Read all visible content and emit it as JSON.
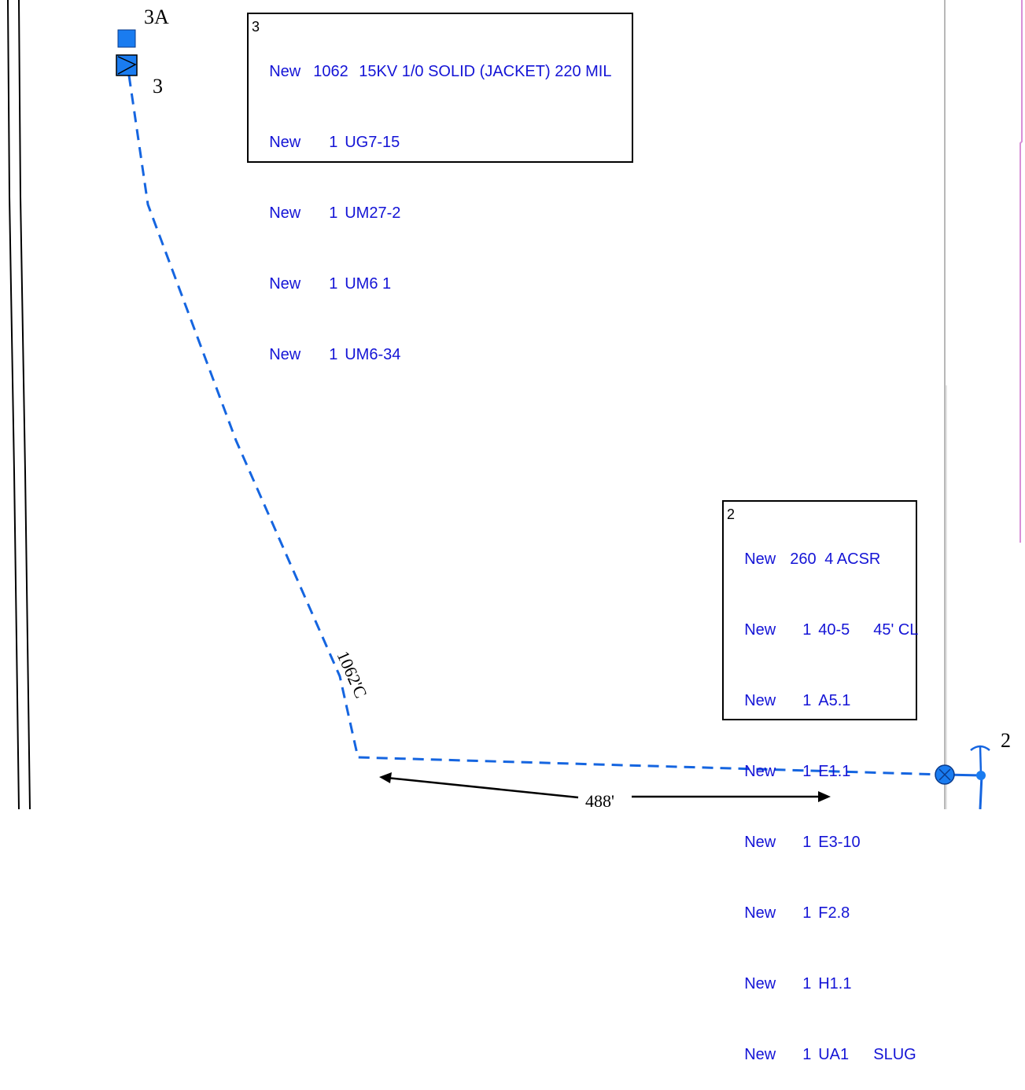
{
  "colors": {
    "line": "#1565e0",
    "device_fill": "#1a7cf0",
    "note_text": "#1414d6",
    "boundary_gray": "#b8b8b8",
    "boundary_pink": "#d890d8"
  },
  "labels": {
    "point_3a": "3A",
    "point_3": "3",
    "point_2": "2",
    "span_1062": "1062'C",
    "span_488": "488'"
  },
  "note_box_3": {
    "id": "3",
    "rows": [
      {
        "status": "New",
        "qty": "1062",
        "code": "15KV 1/0 SOLID (JACKET) 220 MIL",
        "extra": ""
      },
      {
        "status": "New",
        "qty": "1",
        "code": "UG7-15",
        "extra": ""
      },
      {
        "status": "New",
        "qty": "1",
        "code": "UM27-2",
        "extra": ""
      },
      {
        "status": "New",
        "qty": "1",
        "code": "UM6 1",
        "extra": ""
      },
      {
        "status": "New",
        "qty": "1",
        "code": "UM6-34",
        "extra": ""
      }
    ]
  },
  "note_box_2": {
    "id": "2",
    "rows": [
      {
        "status": "New",
        "qty": "260",
        "code": "4 ACSR",
        "extra": ""
      },
      {
        "status": "New",
        "qty": "1",
        "code": "40-5",
        "extra": "45' CL"
      },
      {
        "status": "New",
        "qty": "1",
        "code": "A5.1",
        "extra": ""
      },
      {
        "status": "New",
        "qty": "1",
        "code": "E1.1",
        "extra": ""
      },
      {
        "status": "New",
        "qty": "1",
        "code": "E3-10",
        "extra": ""
      },
      {
        "status": "New",
        "qty": "1",
        "code": "F2.8",
        "extra": ""
      },
      {
        "status": "New",
        "qty": "1",
        "code": "H1.1",
        "extra": ""
      },
      {
        "status": "New",
        "qty": "1",
        "code": "UA1",
        "extra": "SLUG"
      }
    ]
  }
}
